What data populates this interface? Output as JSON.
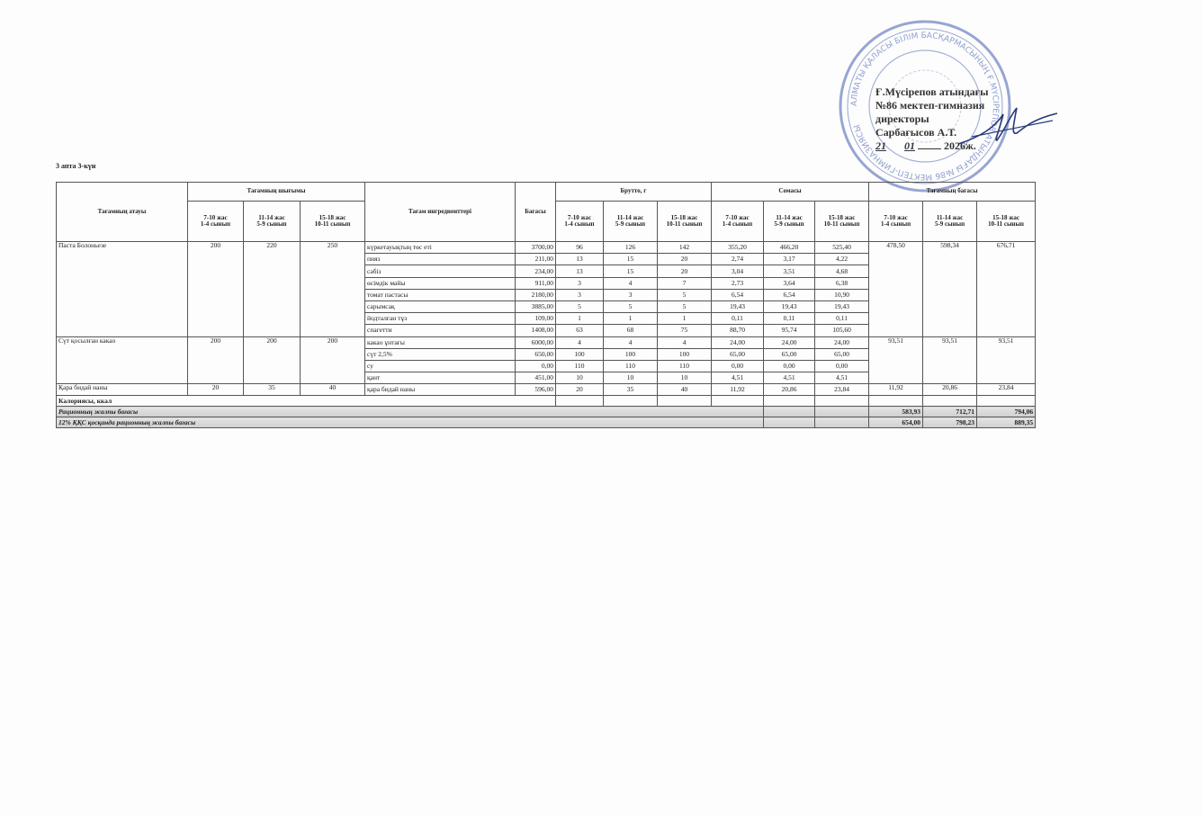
{
  "approval": {
    "stamp_text": "Алматы қаласы білім басқармасының Ғ.Мүсірепов атындағы №86 мектеп-гимназиясы коммуналдық мемлекеттік мекемесі",
    "line1": "Ғ.Мүсірепов атындағы",
    "line2": "№86 мектеп-гимназия",
    "line3": "директоры",
    "line4": "Сарбағысов А.Т.",
    "date_day": "21",
    "date_month": "01",
    "date_year": "2026ж."
  },
  "day_title": "3 апта 3-күн",
  "headers": {
    "dish_name": "Тағамның атауы",
    "output": "Тағамның шығымы",
    "ingredients": "Тағам ингредиенттері",
    "price": "Бағасы",
    "brutto": "Брутто, г",
    "sum": "Сомасы",
    "dish_price": "Тағамның бағасы",
    "age_groups": [
      {
        "age": "7-10 жас",
        "grade": "1-4 сынып"
      },
      {
        "age": "11-14 жас",
        "grade": "5-9 сынып"
      },
      {
        "age": "15-18 жас",
        "grade": "10-11 сынып"
      }
    ]
  },
  "dishes": [
    {
      "name": "Паста Болоньезе",
      "output": [
        "200",
        "220",
        "250"
      ],
      "dish_price": [
        "478,50",
        "598,34",
        "676,71"
      ],
      "ingredients": [
        {
          "name": "күркетауықтың төс еті",
          "price": "3700,00",
          "brutto": [
            "96",
            "126",
            "142"
          ],
          "sum": [
            "355,20",
            "466,20",
            "525,40"
          ]
        },
        {
          "name": "пияз",
          "price": "211,00",
          "brutto": [
            "13",
            "15",
            "20"
          ],
          "sum": [
            "2,74",
            "3,17",
            "4,22"
          ]
        },
        {
          "name": "сәбіз",
          "price": "234,00",
          "brutto": [
            "13",
            "15",
            "20"
          ],
          "sum": [
            "3,04",
            "3,51",
            "4,68"
          ]
        },
        {
          "name": "өсімдік майы",
          "price": "911,00",
          "brutto": [
            "3",
            "4",
            "7"
          ],
          "sum": [
            "2,73",
            "3,64",
            "6,38"
          ]
        },
        {
          "name": "томат пастасы",
          "price": "2180,00",
          "brutto": [
            "3",
            "3",
            "5"
          ],
          "sum": [
            "6,54",
            "6,54",
            "10,90"
          ]
        },
        {
          "name": "сарымсақ",
          "price": "3885,00",
          "brutto": [
            "5",
            "5",
            "5"
          ],
          "sum": [
            "19,43",
            "19,43",
            "19,43"
          ]
        },
        {
          "name": "йодталған тұз",
          "price": "109,00",
          "brutto": [
            "1",
            "1",
            "1"
          ],
          "sum": [
            "0,11",
            "0,11",
            "0,11"
          ]
        },
        {
          "name": "спагетти",
          "price": "1408,00",
          "brutto": [
            "63",
            "68",
            "75"
          ],
          "sum": [
            "88,70",
            "95,74",
            "105,60"
          ]
        }
      ]
    },
    {
      "name": "Сүт қосылған какао",
      "output": [
        "200",
        "200",
        "200"
      ],
      "dish_price": [
        "93,51",
        "93,51",
        "93,51"
      ],
      "ingredients": [
        {
          "name": "какао ұнтағы",
          "price": "6000,00",
          "brutto": [
            "4",
            "4",
            "4"
          ],
          "sum": [
            "24,00",
            "24,00",
            "24,00"
          ]
        },
        {
          "name": "сүт 2,5%",
          "price": "650,00",
          "brutto": [
            "100",
            "100",
            "100"
          ],
          "sum": [
            "65,00",
            "65,00",
            "65,00"
          ]
        },
        {
          "name": "су",
          "price": "0,00",
          "brutto": [
            "110",
            "110",
            "110"
          ],
          "sum": [
            "0,00",
            "0,00",
            "0,00"
          ]
        },
        {
          "name": "қант",
          "price": "451,00",
          "brutto": [
            "10",
            "10",
            "10"
          ],
          "sum": [
            "4,51",
            "4,51",
            "4,51"
          ]
        }
      ]
    },
    {
      "name": "Қара бидай наны",
      "output": [
        "20",
        "35",
        "40"
      ],
      "dish_price": [
        "11,92",
        "20,86",
        "23,84"
      ],
      "ingredients": [
        {
          "name": "қара бидай наны",
          "price": "596,00",
          "brutto": [
            "20",
            "35",
            "40"
          ],
          "sum": [
            "11,92",
            "20,86",
            "23,84"
          ]
        }
      ]
    }
  ],
  "calories_label": "Калориясы, ккал",
  "total": {
    "label": "Рационның жалпы бағасы",
    "values": [
      "583,93",
      "712,71",
      "794,06"
    ]
  },
  "total_vat": {
    "label": "12% ҚҚС қосқанда рационның жалпы бағасы",
    "values": [
      "654,00",
      "798,23",
      "889,35"
    ]
  },
  "colors": {
    "stamp": "#5b6fb5",
    "ink": "#222222",
    "total_row_bg": "#d8d8d8"
  }
}
